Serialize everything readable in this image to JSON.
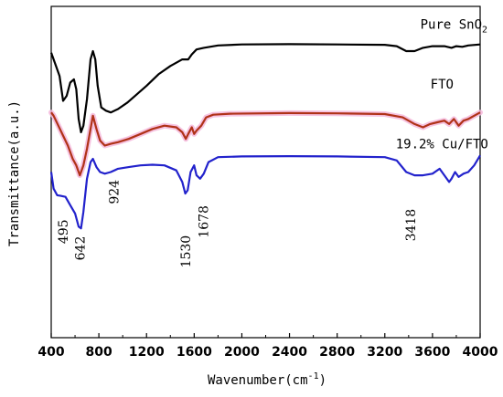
{
  "chart_data": {
    "type": "line",
    "xlabel": "Wavenumber(cm",
    "xlabel_sup": "-1",
    "xlabel_end": ")",
    "ylabel": "Transmittance(a.u.)",
    "xlim": [
      400,
      4000
    ],
    "ylim": [
      0,
      100
    ],
    "x_ticks": [
      "400",
      "800",
      "1200",
      "1600",
      "2000",
      "2400",
      "2800",
      "3200",
      "3600",
      "4000"
    ],
    "grid": false,
    "legend": "none",
    "series": [
      {
        "name": "Pure SnO",
        "name_sub": "2",
        "color": "#000000",
        "points": [
          [
            400,
            86
          ],
          [
            440,
            82
          ],
          [
            470,
            79
          ],
          [
            500,
            71.5
          ],
          [
            530,
            73
          ],
          [
            560,
            77
          ],
          [
            590,
            78
          ],
          [
            610,
            75
          ],
          [
            630,
            66
          ],
          [
            650,
            62
          ],
          [
            670,
            64
          ],
          [
            700,
            72
          ],
          [
            730,
            84
          ],
          [
            750,
            86.5
          ],
          [
            770,
            84
          ],
          [
            790,
            76
          ],
          [
            820,
            69.5
          ],
          [
            860,
            68.5
          ],
          [
            900,
            68
          ],
          [
            960,
            69
          ],
          [
            1040,
            71
          ],
          [
            1120,
            73.5
          ],
          [
            1200,
            76
          ],
          [
            1300,
            79.5
          ],
          [
            1400,
            82
          ],
          [
            1500,
            84
          ],
          [
            1550,
            84
          ],
          [
            1580,
            85.5
          ],
          [
            1620,
            87
          ],
          [
            1680,
            87.5
          ],
          [
            1800,
            88.2
          ],
          [
            2000,
            88.5
          ],
          [
            2400,
            88.6
          ],
          [
            2800,
            88.5
          ],
          [
            3200,
            88.4
          ],
          [
            3300,
            88
          ],
          [
            3380,
            86.5
          ],
          [
            3450,
            86.5
          ],
          [
            3520,
            87.5
          ],
          [
            3600,
            88
          ],
          [
            3700,
            88
          ],
          [
            3760,
            87.5
          ],
          [
            3800,
            88
          ],
          [
            3850,
            87.8
          ],
          [
            3900,
            88.2
          ],
          [
            4000,
            88.5
          ]
        ]
      },
      {
        "name": "FTO",
        "color": "#b03218",
        "points": [
          [
            400,
            68
          ],
          [
            420,
            67
          ],
          [
            460,
            64
          ],
          [
            500,
            61
          ],
          [
            540,
            58
          ],
          [
            580,
            54
          ],
          [
            610,
            52
          ],
          [
            640,
            49
          ],
          [
            670,
            52
          ],
          [
            700,
            57
          ],
          [
            730,
            63
          ],
          [
            750,
            67
          ],
          [
            780,
            63
          ],
          [
            810,
            59.5
          ],
          [
            850,
            58
          ],
          [
            900,
            58.5
          ],
          [
            960,
            59
          ],
          [
            1050,
            60
          ],
          [
            1150,
            61.5
          ],
          [
            1250,
            63
          ],
          [
            1350,
            64
          ],
          [
            1450,
            63.5
          ],
          [
            1500,
            62
          ],
          [
            1530,
            60
          ],
          [
            1550,
            61.5
          ],
          [
            1580,
            63.5
          ],
          [
            1600,
            61.5
          ],
          [
            1620,
            62.5
          ],
          [
            1660,
            64
          ],
          [
            1700,
            66.5
          ],
          [
            1760,
            67.3
          ],
          [
            1900,
            67.6
          ],
          [
            2400,
            67.8
          ],
          [
            2800,
            67.7
          ],
          [
            3200,
            67.5
          ],
          [
            3350,
            66.5
          ],
          [
            3450,
            64.5
          ],
          [
            3520,
            63.5
          ],
          [
            3580,
            64.5
          ],
          [
            3640,
            65
          ],
          [
            3700,
            65.5
          ],
          [
            3740,
            64.5
          ],
          [
            3780,
            66
          ],
          [
            3820,
            64
          ],
          [
            3860,
            65.5
          ],
          [
            3900,
            66
          ],
          [
            3950,
            67
          ],
          [
            4000,
            68
          ]
        ]
      },
      {
        "name": "19.2% Cu/FTO",
        "color": "#2222cc",
        "points": [
          [
            400,
            50
          ],
          [
            420,
            45
          ],
          [
            450,
            43
          ],
          [
            480,
            42.8
          ],
          [
            520,
            42.5
          ],
          [
            560,
            40
          ],
          [
            600,
            37.5
          ],
          [
            630,
            33.5
          ],
          [
            650,
            33
          ],
          [
            670,
            38
          ],
          [
            700,
            48
          ],
          [
            730,
            53
          ],
          [
            750,
            54
          ],
          [
            780,
            51.5
          ],
          [
            810,
            50
          ],
          [
            850,
            49.5
          ],
          [
            900,
            50
          ],
          [
            960,
            51
          ],
          [
            1050,
            51.5
          ],
          [
            1150,
            52
          ],
          [
            1250,
            52.2
          ],
          [
            1350,
            52
          ],
          [
            1450,
            50.5
          ],
          [
            1500,
            47
          ],
          [
            1525,
            43.5
          ],
          [
            1545,
            44.5
          ],
          [
            1570,
            50
          ],
          [
            1600,
            52
          ],
          [
            1620,
            49
          ],
          [
            1650,
            48
          ],
          [
            1680,
            49.5
          ],
          [
            1720,
            53
          ],
          [
            1800,
            54.5
          ],
          [
            2000,
            54.7
          ],
          [
            2400,
            54.8
          ],
          [
            2800,
            54.7
          ],
          [
            3200,
            54.5
          ],
          [
            3300,
            53.5
          ],
          [
            3380,
            50
          ],
          [
            3450,
            49
          ],
          [
            3520,
            49
          ],
          [
            3600,
            49.5
          ],
          [
            3660,
            51
          ],
          [
            3700,
            49
          ],
          [
            3740,
            47
          ],
          [
            3760,
            48
          ],
          [
            3790,
            50
          ],
          [
            3820,
            48.5
          ],
          [
            3860,
            49.5
          ],
          [
            3900,
            50
          ],
          [
            3950,
            52
          ],
          [
            4000,
            55
          ]
        ]
      }
    ],
    "series_labels": [
      {
        "series": 0,
        "x": 3780,
        "y": 93.2
      },
      {
        "series": 1,
        "x": 3680,
        "y": 75.2
      },
      {
        "series": 2,
        "x": 3680,
        "y": 57.2
      }
    ],
    "annotations": [
      {
        "text": "495",
        "x": 500,
        "y": 32
      },
      {
        "text": "642",
        "x": 642,
        "y": 27
      },
      {
        "text": "924",
        "x": 924,
        "y": 44
      },
      {
        "text": "1530",
        "x": 1530,
        "y": 26
      },
      {
        "text": "1678",
        "x": 1678,
        "y": 35
      },
      {
        "text": "3418",
        "x": 3418,
        "y": 34
      }
    ]
  }
}
